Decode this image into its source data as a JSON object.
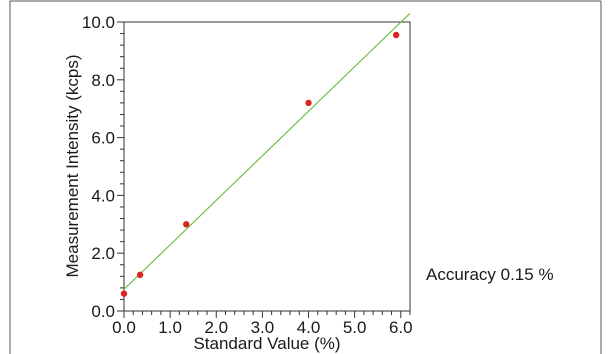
{
  "chart_data": {
    "type": "scatter",
    "xlabel": "Standard Value (%)",
    "ylabel": "Measurement Intensity (kcps)",
    "xlim": [
      0.0,
      6.2
    ],
    "ylim": [
      0.0,
      10.0
    ],
    "x_ticks": [
      0.0,
      1.0,
      2.0,
      3.0,
      4.0,
      5.0,
      6.0
    ],
    "y_ticks": [
      0.0,
      2.0,
      4.0,
      6.0,
      8.0,
      10.0
    ],
    "x_tick_labels": [
      "0.0",
      "1.0",
      "2.0",
      "3.0",
      "4.0",
      "5.0",
      "6.0"
    ],
    "y_tick_labels": [
      "0.0",
      "2.0",
      "4.0",
      "6.0",
      "8.0",
      "10.0"
    ],
    "points": [
      {
        "x": 0.0,
        "y": 0.6
      },
      {
        "x": 0.35,
        "y": 1.25
      },
      {
        "x": 1.35,
        "y": 3.0
      },
      {
        "x": 4.0,
        "y": 7.2
      },
      {
        "x": 5.9,
        "y": 9.55
      }
    ],
    "fit_line": {
      "x0": 0.0,
      "y0": 0.75,
      "x1": 6.2,
      "y1": 10.3
    },
    "point_color": "#dd2222",
    "line_color": "#6fbf4a",
    "grid": false,
    "annotation": "Accuracy 0.15 %"
  }
}
